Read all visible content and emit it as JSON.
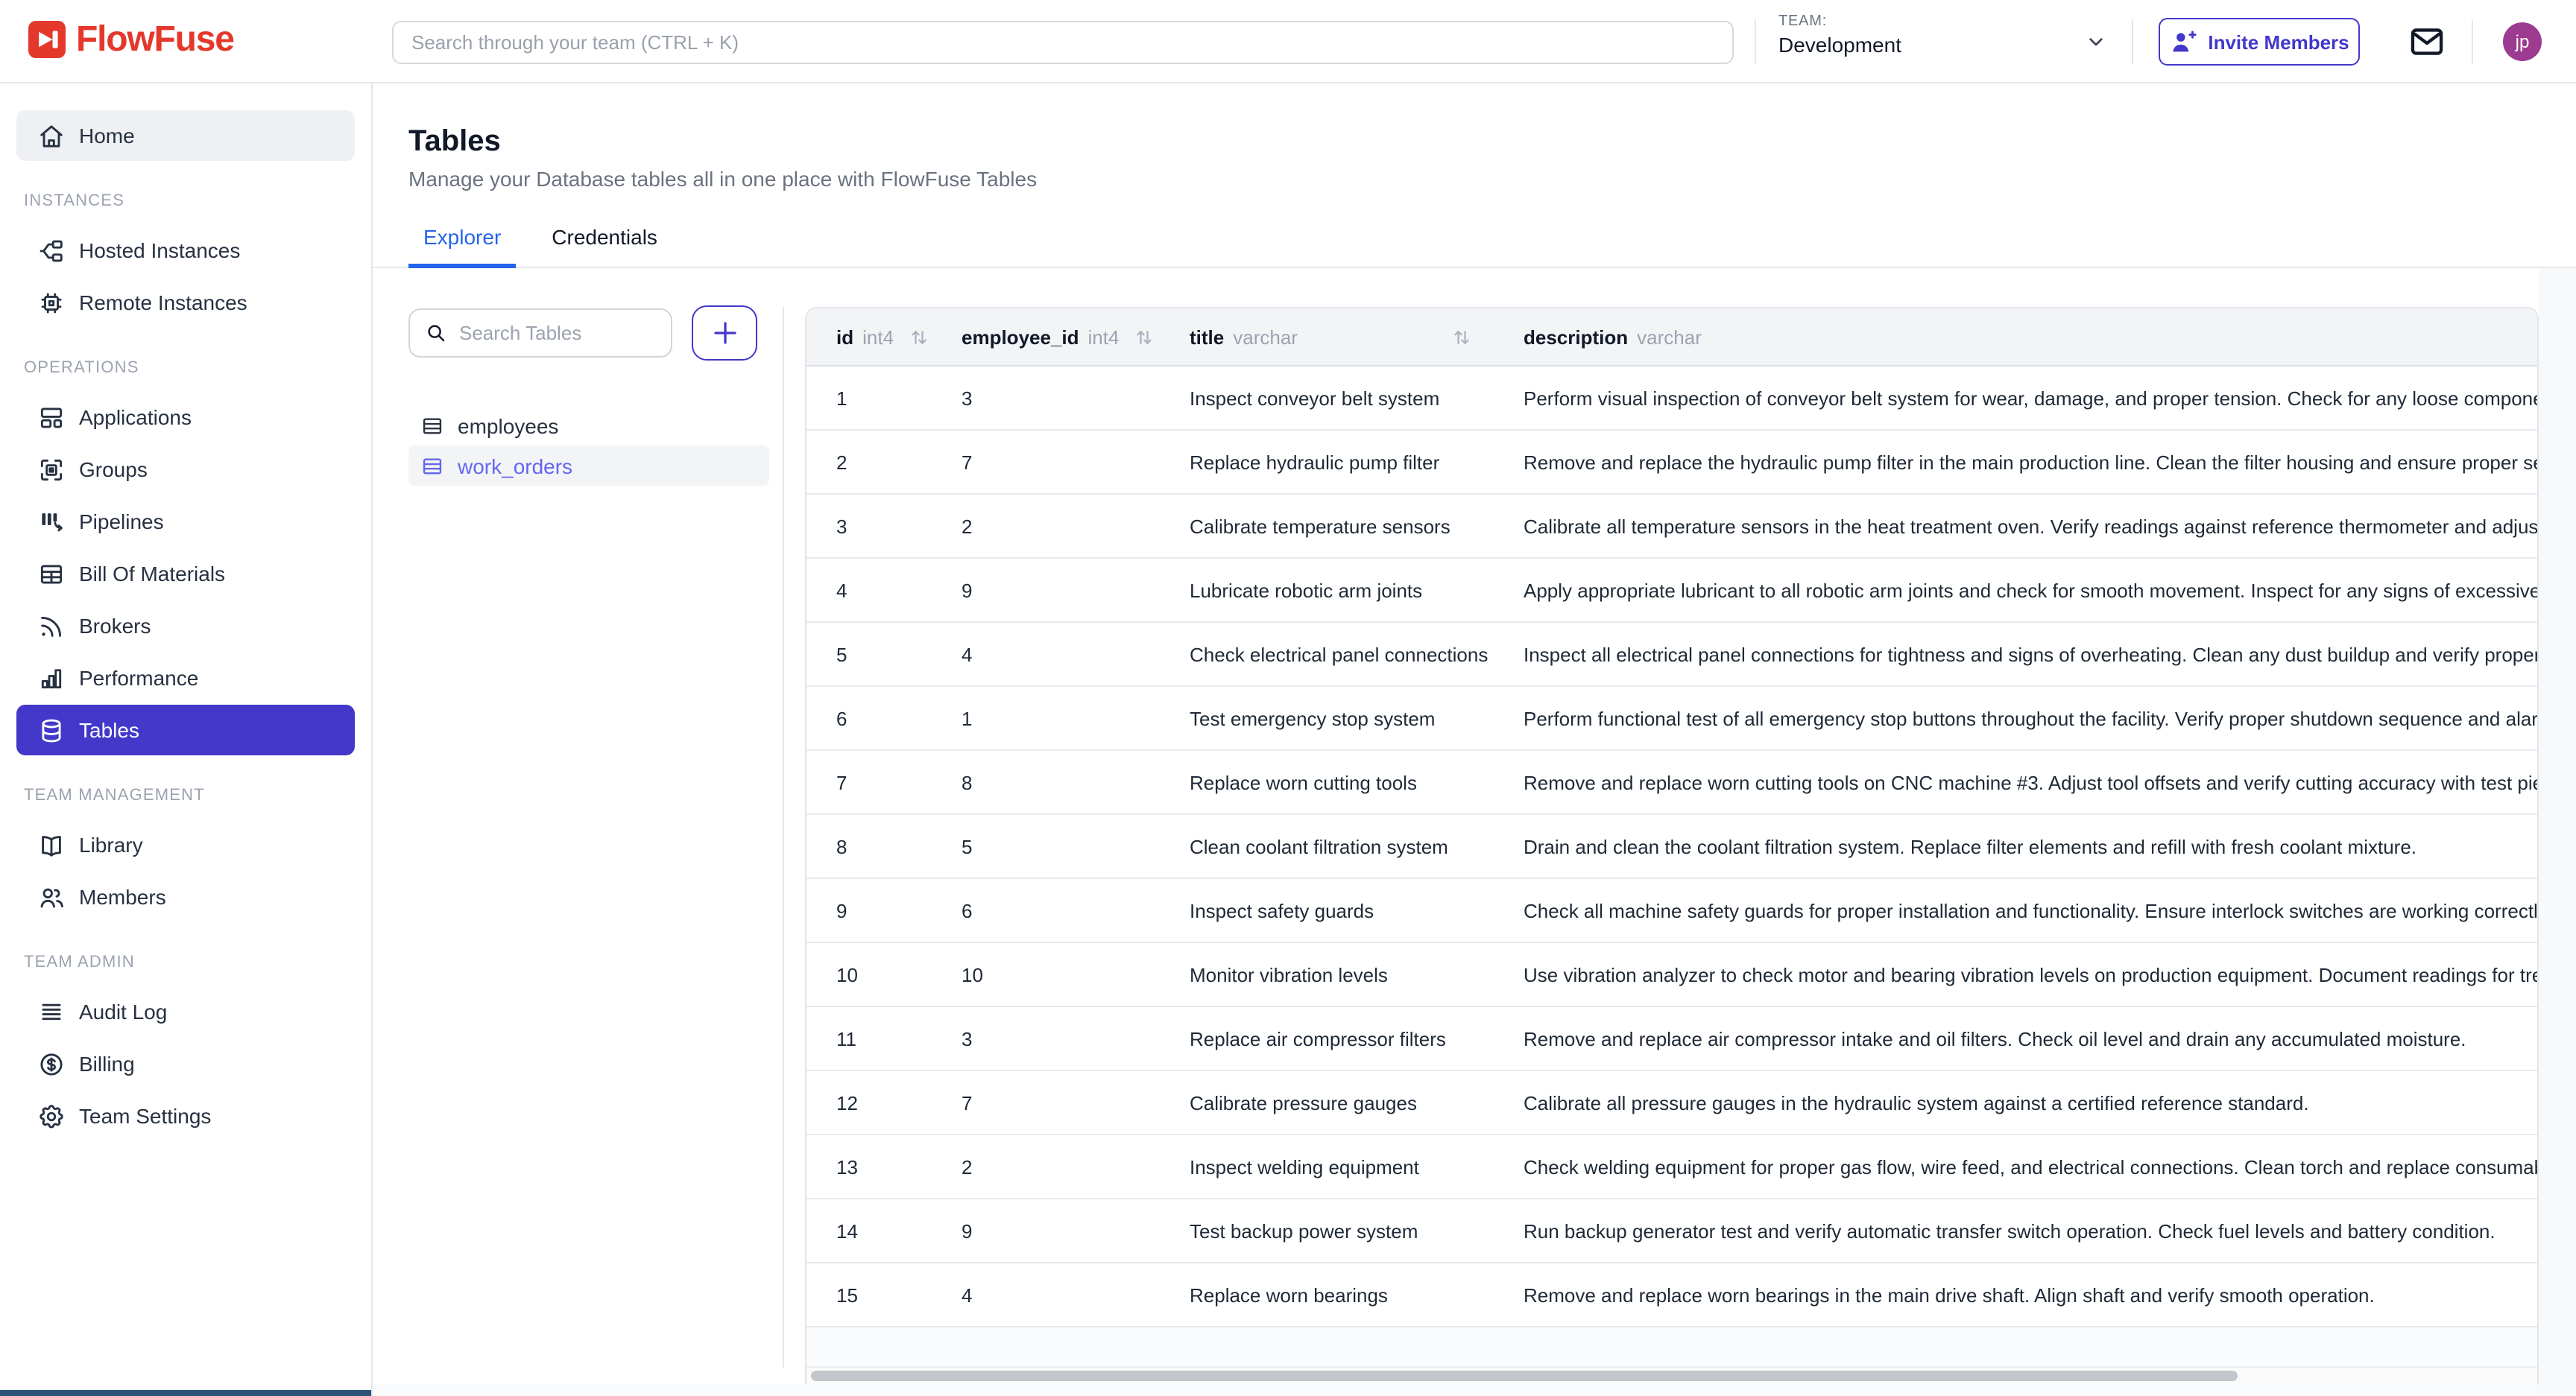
{
  "header": {
    "logo_text": "FlowFuse",
    "search_placeholder": "Search through your team (CTRL + K)",
    "team_label": "TEAM:",
    "team_name": "Development",
    "invite_button_label": "Invite Members",
    "avatar_initials": "jp"
  },
  "sidebar": {
    "sections": [
      {
        "label": "",
        "items": [
          {
            "label": "Home",
            "icon": "home-icon",
            "style": "pill"
          }
        ]
      },
      {
        "label": "INSTANCES",
        "items": [
          {
            "label": "Hosted Instances",
            "icon": "hosted-instances-icon"
          },
          {
            "label": "Remote Instances",
            "icon": "remote-instances-icon"
          }
        ]
      },
      {
        "label": "OPERATIONS",
        "items": [
          {
            "label": "Applications",
            "icon": "applications-icon"
          },
          {
            "label": "Groups",
            "icon": "groups-icon"
          },
          {
            "label": "Pipelines",
            "icon": "pipelines-icon"
          },
          {
            "label": "Bill Of Materials",
            "icon": "bill-of-materials-icon"
          },
          {
            "label": "Brokers",
            "icon": "brokers-icon"
          },
          {
            "label": "Performance",
            "icon": "performance-icon"
          },
          {
            "label": "Tables",
            "icon": "tables-icon",
            "active": true
          }
        ]
      },
      {
        "label": "TEAM MANAGEMENT",
        "items": [
          {
            "label": "Library",
            "icon": "library-icon"
          },
          {
            "label": "Members",
            "icon": "members-icon"
          }
        ]
      },
      {
        "label": "TEAM ADMIN",
        "items": [
          {
            "label": "Audit Log",
            "icon": "audit-log-icon"
          },
          {
            "label": "Billing",
            "icon": "billing-icon"
          },
          {
            "label": "Team Settings",
            "icon": "team-settings-icon"
          }
        ]
      }
    ]
  },
  "page": {
    "title": "Tables",
    "subtitle": "Manage your Database tables all in one place with FlowFuse Tables",
    "tabs": [
      {
        "label": "Explorer",
        "active": true
      },
      {
        "label": "Credentials",
        "active": false
      }
    ]
  },
  "explorer": {
    "search_placeholder": "Search Tables",
    "add_button": "+",
    "tables": [
      {
        "name": "employees",
        "selected": false
      },
      {
        "name": "work_orders",
        "selected": true
      }
    ]
  },
  "data_table": {
    "columns": [
      {
        "name": "id",
        "type": "int4",
        "sortable": true
      },
      {
        "name": "employee_id",
        "type": "int4",
        "sortable": true
      },
      {
        "name": "title",
        "type": "varchar",
        "sortable": true
      },
      {
        "name": "description",
        "type": "varchar",
        "sortable": false
      }
    ],
    "rows": [
      {
        "id": "1",
        "employee_id": "3",
        "title": "Inspect conveyor belt system",
        "description": "Perform visual inspection of conveyor belt system for wear, damage, and proper tension. Check for any loose componen"
      },
      {
        "id": "2",
        "employee_id": "7",
        "title": "Replace hydraulic pump filter",
        "description": "Remove and replace the hydraulic pump filter in the main production line. Clean the filter housing and ensure proper sea"
      },
      {
        "id": "3",
        "employee_id": "2",
        "title": "Calibrate temperature sensors",
        "description": "Calibrate all temperature sensors in the heat treatment oven. Verify readings against reference thermometer and adjust"
      },
      {
        "id": "4",
        "employee_id": "9",
        "title": "Lubricate robotic arm joints",
        "description": "Apply appropriate lubricant to all robotic arm joints and check for smooth movement. Inspect for any signs of excessive"
      },
      {
        "id": "5",
        "employee_id": "4",
        "title": "Check electrical panel connections",
        "description": "Inspect all electrical panel connections for tightness and signs of overheating. Clean any dust buildup and verify proper"
      },
      {
        "id": "6",
        "employee_id": "1",
        "title": "Test emergency stop system",
        "description": "Perform functional test of all emergency stop buttons throughout the facility. Verify proper shutdown sequence and alar"
      },
      {
        "id": "7",
        "employee_id": "8",
        "title": "Replace worn cutting tools",
        "description": "Remove and replace worn cutting tools on CNC machine #3. Adjust tool offsets and verify cutting accuracy with test pie"
      },
      {
        "id": "8",
        "employee_id": "5",
        "title": "Clean coolant filtration system",
        "description": "Drain and clean the coolant filtration system. Replace filter elements and refill with fresh coolant mixture."
      },
      {
        "id": "9",
        "employee_id": "6",
        "title": "Inspect safety guards",
        "description": "Check all machine safety guards for proper installation and functionality. Ensure interlock switches are working correctl"
      },
      {
        "id": "10",
        "employee_id": "10",
        "title": "Monitor vibration levels",
        "description": "Use vibration analyzer to check motor and bearing vibration levels on production equipment. Document readings for tre"
      },
      {
        "id": "11",
        "employee_id": "3",
        "title": "Replace air compressor filters",
        "description": "Remove and replace air compressor intake and oil filters. Check oil level and drain any accumulated moisture."
      },
      {
        "id": "12",
        "employee_id": "7",
        "title": "Calibrate pressure gauges",
        "description": "Calibrate all pressure gauges in the hydraulic system against a certified reference standard."
      },
      {
        "id": "13",
        "employee_id": "2",
        "title": "Inspect welding equipment",
        "description": "Check welding equipment for proper gas flow, wire feed, and electrical connections. Clean torch and replace consumab"
      },
      {
        "id": "14",
        "employee_id": "9",
        "title": "Test backup power system",
        "description": "Run backup generator test and verify automatic transfer switch operation. Check fuel levels and battery condition."
      },
      {
        "id": "15",
        "employee_id": "4",
        "title": "Replace worn bearings",
        "description": "Remove and replace worn bearings in the main drive shaft. Align shaft and verify smooth operation."
      }
    ]
  },
  "colors": {
    "accent_indigo": "#4338ca",
    "link_indigo": "#6366f1",
    "tab_blue": "#2563eb",
    "brand_red": "#e4382c",
    "avatar_purple": "#9d3b90",
    "header_gray": "#f3f4f6",
    "text_dark": "#1f2937",
    "text_muted": "#9ca3af"
  }
}
